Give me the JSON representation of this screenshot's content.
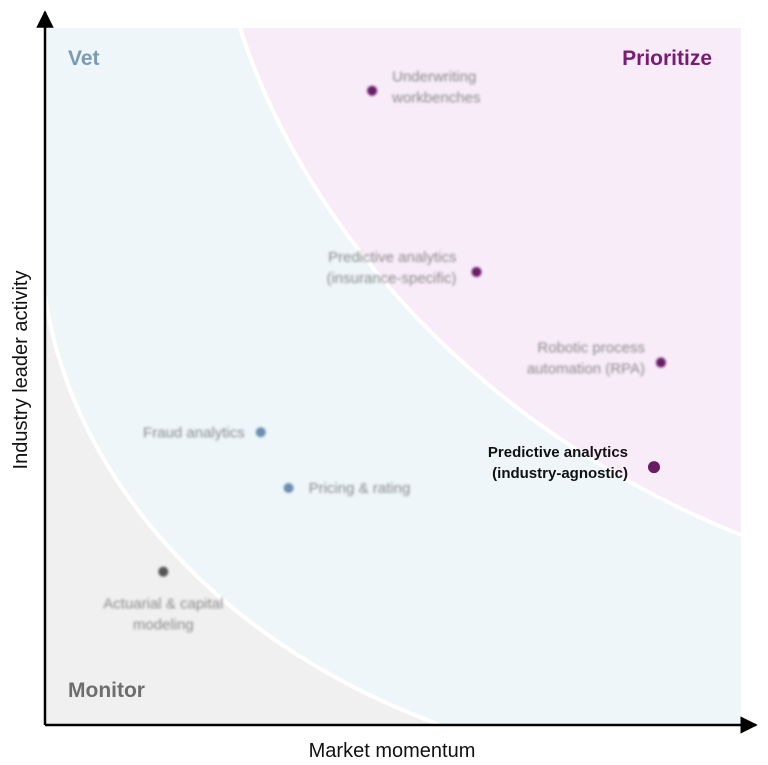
{
  "chart_data": {
    "type": "scatter",
    "xlabel": "Market momentum",
    "ylabel": "Industry leader activity",
    "regions": [
      {
        "name": "Monitor",
        "color": "#f0f0f0",
        "label_color": "#6e6e6e"
      },
      {
        "name": "Vet",
        "color": "#eef6fa",
        "label_color": "#7a9bb2"
      },
      {
        "name": "Prioritize",
        "color": "#f8ecf8",
        "label_color": "#7b1a74"
      }
    ],
    "points": [
      {
        "label": "Underwriting workbenches",
        "lines": [
          "Underwriting",
          "workbenches"
        ],
        "region": "Prioritize",
        "x": 0.47,
        "y": 0.91,
        "highlight": false
      },
      {
        "label": "Predictive analytics (insurance-specific)",
        "lines": [
          "Predictive analytics",
          "(insurance-specific)"
        ],
        "region": "Prioritize",
        "x": 0.62,
        "y": 0.65,
        "highlight": false
      },
      {
        "label": "Robotic process automation (RPA)",
        "lines": [
          "Robotic process",
          "automation (RPA)"
        ],
        "region": "Prioritize",
        "x": 0.885,
        "y": 0.52,
        "highlight": false
      },
      {
        "label": "Predictive analytics (industry-agnostic)",
        "lines": [
          "Predictive analytics",
          "(industry-agnostic)"
        ],
        "region": "Prioritize",
        "x": 0.875,
        "y": 0.37,
        "highlight": true
      },
      {
        "label": "Fraud analytics",
        "lines": [
          "Fraud analytics"
        ],
        "region": "Vet",
        "x": 0.31,
        "y": 0.42,
        "highlight": false
      },
      {
        "label": "Pricing & rating",
        "lines": [
          "Pricing & rating"
        ],
        "region": "Vet",
        "x": 0.35,
        "y": 0.34,
        "highlight": false
      },
      {
        "label": "Actuarial & capital modeling",
        "lines": [
          "Actuarial & capital",
          "modeling"
        ],
        "region": "Monitor",
        "x": 0.17,
        "y": 0.22,
        "highlight": false
      }
    ],
    "grid": false,
    "axis_ticks": false
  }
}
